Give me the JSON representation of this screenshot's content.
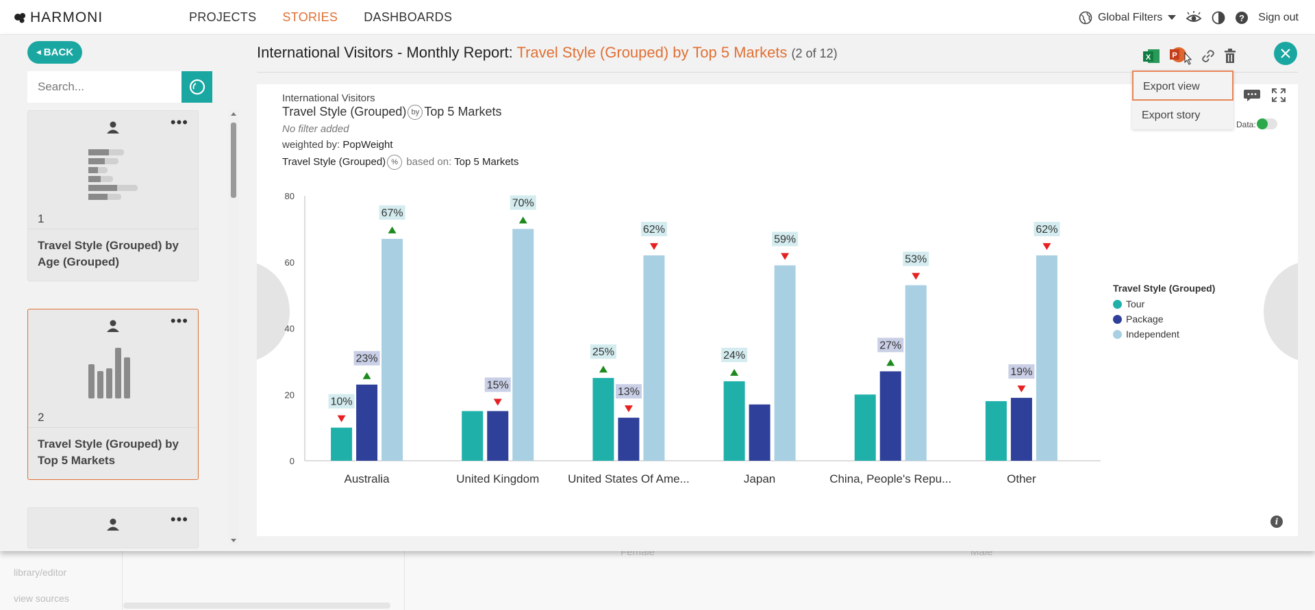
{
  "app": {
    "brand": "HARMONI",
    "nav": [
      "PROJECTS",
      "STORIES",
      "DASHBOARDS"
    ],
    "active_nav": "STORIES",
    "global_filters": "Global Filters",
    "sign_out": "Sign out"
  },
  "sidebar": {
    "back_label": "BACK",
    "search_placeholder": "Search...",
    "cards": [
      {
        "number": "1",
        "title": "Travel Style (Grouped) by Age (Grouped)"
      },
      {
        "number": "2",
        "title": "Travel Style (Grouped) by Top 5 Markets"
      }
    ]
  },
  "header": {
    "title_prefix": "International Visitors - Monthly Report: ",
    "title_accent": "Travel Style (Grouped) by Top 5 Markets",
    "title_count": "(2 of 12)"
  },
  "export_menu": {
    "items": [
      "Export view",
      "Export story"
    ]
  },
  "chart_meta": {
    "dataset": "International Visitors",
    "title_left": "Travel Style (Grouped)",
    "by_badge": "by",
    "title_right": "Top 5 Markets",
    "filter_note": "No filter added",
    "weighted_label": "weighted by:",
    "weighted_value": "PopWeight",
    "pct_label": "Travel Style (Grouped)",
    "pct_badge": "%",
    "based_label": "based on:",
    "based_value": "Top 5 Markets",
    "toggle_label": "d Data:"
  },
  "chart_data": {
    "type": "bar",
    "categories": [
      "Australia",
      "United Kingdom",
      "United States Of Ame...",
      "Japan",
      "China, People's Repu...",
      "Other"
    ],
    "ylim": [
      0,
      80
    ],
    "yticks": [
      0,
      20,
      40,
      60,
      80
    ],
    "legend_title": "Travel Style (Grouped)",
    "series": [
      {
        "name": "Tour",
        "color": "#1fb0aa",
        "values": [
          10,
          15,
          25,
          24,
          20,
          18
        ],
        "labels": [
          "10%",
          "",
          "25%",
          "24%",
          "",
          ""
        ],
        "arrows": [
          "down",
          "",
          "up",
          "up",
          "",
          ""
        ]
      },
      {
        "name": "Package",
        "color": "#2e4099",
        "values": [
          23,
          15,
          13,
          17,
          27,
          19
        ],
        "labels": [
          "23%",
          "15%",
          "13%",
          "",
          "27%",
          "19%"
        ],
        "arrows": [
          "up",
          "down",
          "down",
          "",
          "up",
          "down"
        ]
      },
      {
        "name": "Independent",
        "color": "#a8cfe2",
        "values": [
          67,
          70,
          62,
          59,
          53,
          62
        ],
        "labels": [
          "67%",
          "70%",
          "62%",
          "59%",
          "53%",
          "62%"
        ],
        "arrows": [
          "up",
          "up",
          "down",
          "down",
          "down",
          "down"
        ]
      }
    ]
  },
  "background": {
    "links": [
      "library/editor",
      "view sources"
    ],
    "axis_labels": [
      "Female",
      "Male"
    ]
  }
}
